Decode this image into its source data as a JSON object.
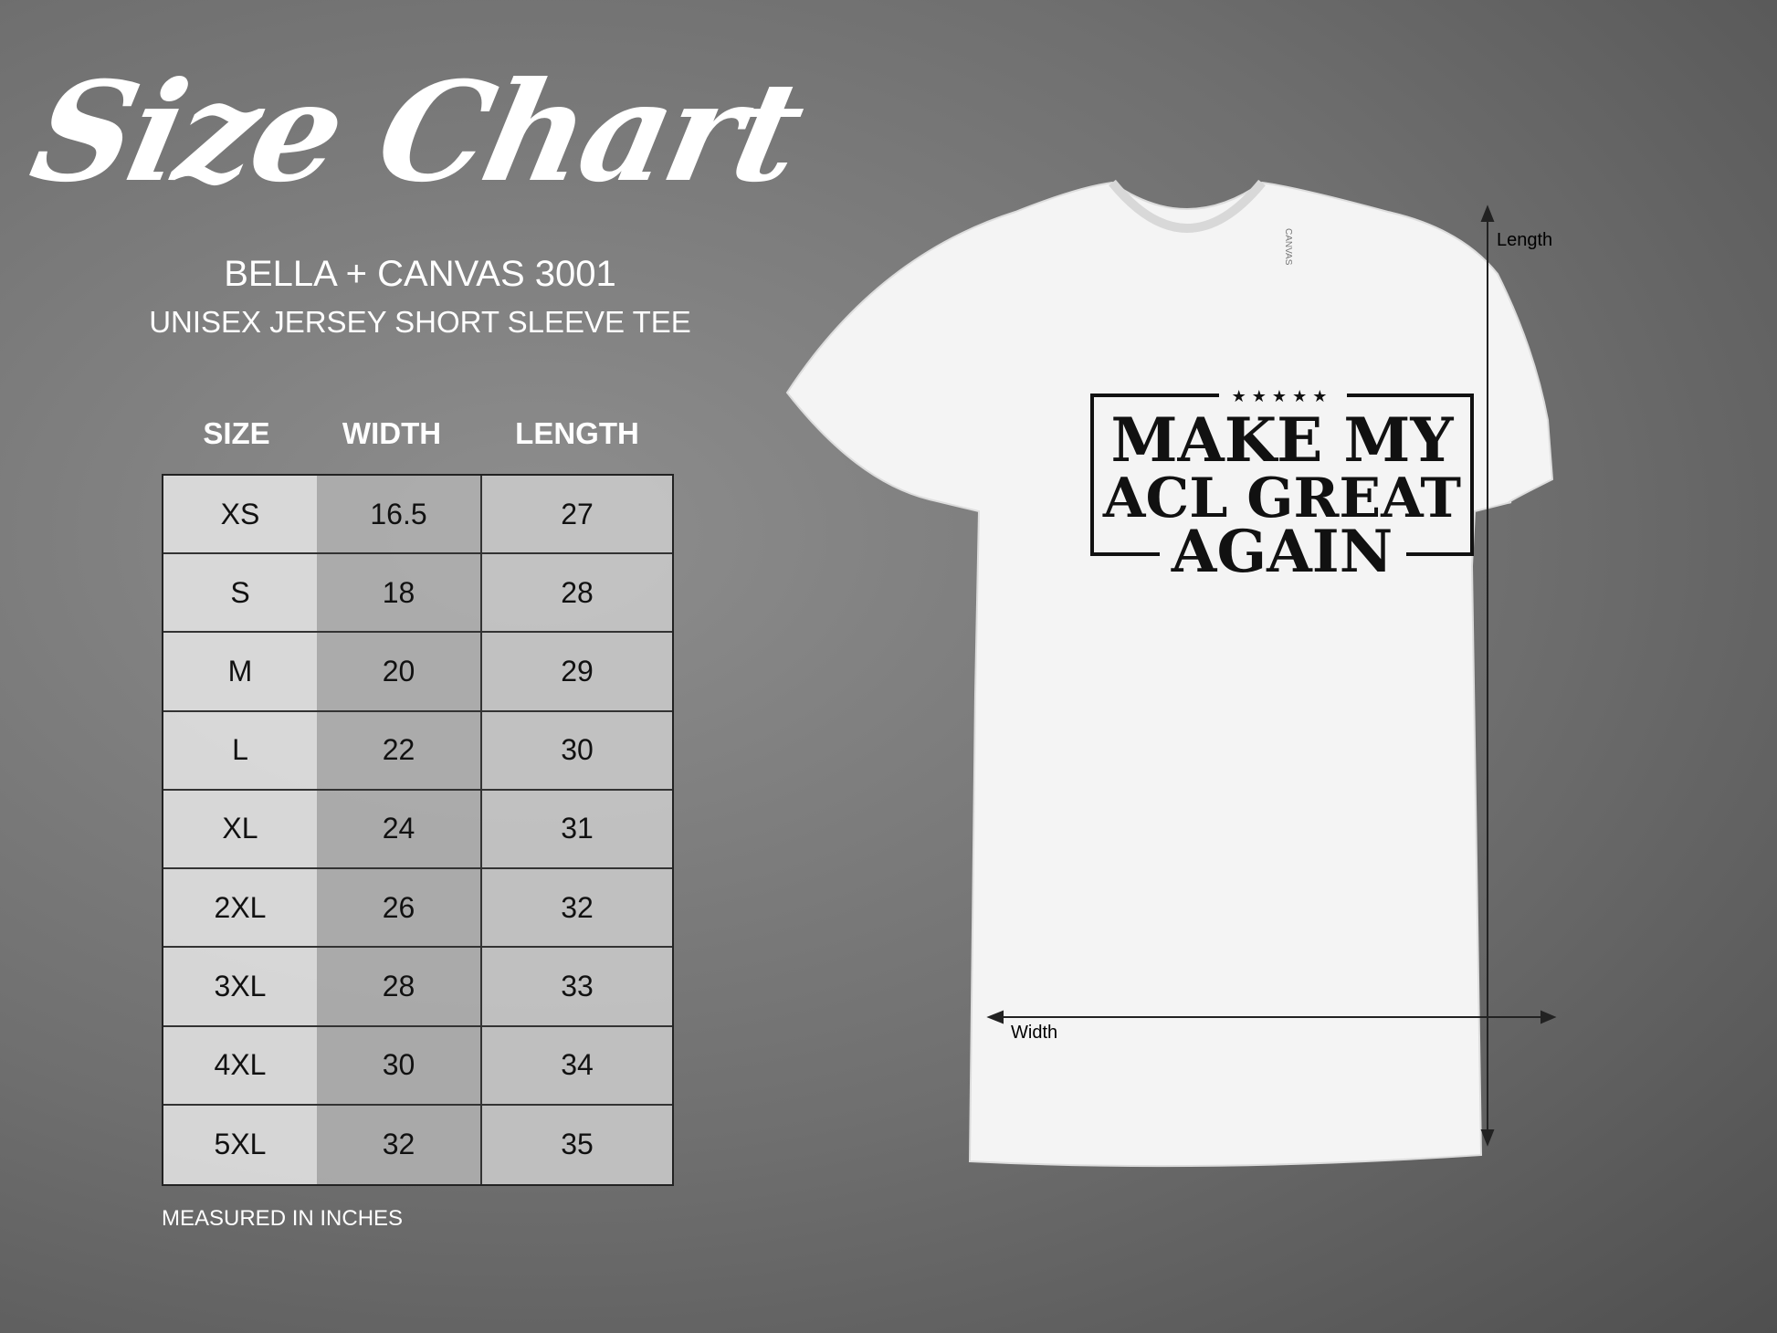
{
  "title": "Size Chart",
  "brand": "BELLA + CANVAS 3001",
  "subtitle": "UNISEX JERSEY SHORT SLEEVE TEE",
  "table": {
    "headers": [
      "SIZE",
      "WIDTH",
      "LENGTH"
    ],
    "rows": [
      [
        "XS",
        "16.5",
        "27"
      ],
      [
        "S",
        "18",
        "28"
      ],
      [
        "M",
        "20",
        "29"
      ],
      [
        "L",
        "22",
        "30"
      ],
      [
        "XL",
        "24",
        "31"
      ],
      [
        "2XL",
        "26",
        "32"
      ],
      [
        "3XL",
        "28",
        "33"
      ],
      [
        "4XL",
        "30",
        "34"
      ],
      [
        "5XL",
        "32",
        "35"
      ]
    ]
  },
  "note": "MEASURED IN INCHES",
  "shirt": {
    "design_lines": [
      "MAKE MY",
      "ACL GREAT",
      "AGAIN"
    ],
    "stars": "★★★★★",
    "neck_label": "CANVAS",
    "length_label": "Length",
    "width_label": "Width"
  }
}
